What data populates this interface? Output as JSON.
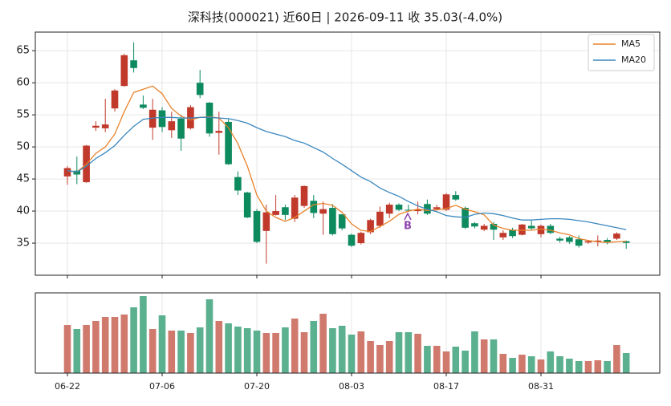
{
  "chart_data": {
    "type": "candlestick",
    "title": "深科技(000021) 近60日  |  2026-09-11 收 35.03(-4.0%)",
    "categories": [
      "06-22",
      null,
      null,
      null,
      null,
      null,
      null,
      null,
      null,
      null,
      "07-06",
      null,
      null,
      null,
      null,
      null,
      null,
      null,
      null,
      null,
      "07-20",
      null,
      null,
      null,
      null,
      null,
      null,
      null,
      null,
      null,
      "08-03",
      null,
      null,
      null,
      null,
      null,
      null,
      null,
      null,
      null,
      "08-17",
      null,
      null,
      null,
      null,
      null,
      null,
      null,
      null,
      null,
      "08-31",
      null,
      null,
      null,
      null,
      null,
      null,
      null,
      null,
      null
    ],
    "open": [
      45.4,
      46.3,
      44.5,
      53,
      52.9,
      56,
      59.5,
      63.5,
      56.6,
      53,
      55.7,
      52.6,
      54.4,
      52.9,
      60,
      56.9,
      52.2,
      53.9,
      45.3,
      42.9,
      40,
      36.9,
      39.4,
      40.6,
      38.8,
      40.8,
      41.6,
      39.6,
      40.5,
      39.5,
      36.3,
      35,
      36.7,
      37.7,
      39.6,
      41,
      40.2,
      40,
      41.1,
      40.3,
      40.2,
      42.5,
      40.5,
      38.1,
      37.1,
      38,
      35.9,
      37.1,
      36.3,
      37.7,
      36.4,
      37.7,
      35.7,
      35.9,
      35.6,
      35.1,
      35.2,
      35.5,
      35.7,
      35.3
    ],
    "high": [
      47,
      48.5,
      50.3,
      54,
      57.5,
      59,
      64.5,
      66.3,
      58,
      57.5,
      56.2,
      55.5,
      55,
      56.5,
      62,
      57,
      55.5,
      54.3,
      46.2,
      43,
      40.3,
      41,
      42.5,
      41,
      42.5,
      44,
      42.5,
      41.5,
      41.1,
      39.5,
      36.5,
      36.8,
      38.8,
      40.7,
      41.3,
      41.2,
      41,
      41.5,
      41.8,
      41,
      42.8,
      43.1,
      40.7,
      38.3,
      38,
      38.3,
      37,
      37.4,
      38,
      38.5,
      37.9,
      38,
      36,
      36.1,
      36.2,
      35.5,
      36.2,
      35.8,
      36.7,
      35.4
    ],
    "low": [
      44.1,
      44.2,
      44.4,
      52.5,
      52.3,
      55.5,
      59.4,
      61.6,
      55.9,
      51.1,
      52.3,
      51.4,
      49.4,
      52.7,
      57.6,
      51.6,
      48.8,
      47.2,
      42.5,
      38.9,
      35,
      31.8,
      39.3,
      38.6,
      38.3,
      40.5,
      38.9,
      36.3,
      36.2,
      37,
      34.4,
      34.8,
      36.4,
      37.4,
      38.9,
      40,
      39.9,
      39.5,
      39.4,
      40.1,
      40,
      41.6,
      37.2,
      37.3,
      36.9,
      35.5,
      35.5,
      35.8,
      36.2,
      37.1,
      35.9,
      36.4,
      35.1,
      34.9,
      34.3,
      34.9,
      34.5,
      34.8,
      35.5,
      34.1
    ],
    "close": [
      46.7,
      45.7,
      50.2,
      53.3,
      53.5,
      58.8,
      64.3,
      62.3,
      56.1,
      55.8,
      53.1,
      54,
      51.3,
      56.2,
      58.1,
      52.1,
      52.5,
      47.3,
      43.2,
      39,
      35.2,
      39.8,
      40,
      39.4,
      42.1,
      43.9,
      39.7,
      40.3,
      36.4,
      37.3,
      34.6,
      36.6,
      38.6,
      39.9,
      41,
      40.2,
      40.1,
      40.2,
      39.6,
      40.6,
      42.6,
      41.8,
      37.4,
      37.6,
      37.7,
      37.1,
      36.6,
      36.1,
      37.9,
      37.3,
      37.7,
      36.6,
      35.4,
      35.2,
      34.6,
      35.3,
      35.4,
      35.2,
      36.49,
      35.03
    ],
    "up_color": "#c0392b",
    "down_color": "#0e8a5f",
    "up_volume_color": "#d07a6e",
    "down_volume_color": "#5bb08f",
    "series": [
      {
        "name": "MA5",
        "color": "#e8822a",
        "values": [
          46.3,
          46.1,
          47.3,
          49,
          50,
          52,
          55.5,
          58.5,
          59,
          59.5,
          58.3,
          56,
          54.8,
          54.2,
          54.6,
          54.7,
          54.5,
          53,
          50.5,
          47,
          42.5,
          40,
          39,
          38.4,
          39,
          40,
          41,
          41.2,
          40.9,
          39.8,
          38,
          37,
          36.8,
          37.6,
          38.4,
          39.5,
          40,
          40.3,
          40.1,
          40.2,
          40.4,
          40.9,
          40.3,
          39.9,
          39.4,
          37.8,
          37.3,
          37,
          37,
          37,
          37.2,
          37,
          36.6,
          36.3,
          35.7,
          35.4,
          35.2,
          35.1,
          35.2,
          35.3
        ]
      },
      {
        "name": "MA20",
        "color": "#3a87be",
        "values": [
          46.3,
          46.1,
          47,
          48.2,
          49.1,
          50.2,
          51.8,
          53.2,
          54.3,
          54.5,
          54.6,
          54.6,
          54.5,
          54.5,
          54.6,
          54.6,
          54.5,
          54.4,
          54.1,
          53.7,
          53,
          52.4,
          52,
          51.6,
          51,
          50.6,
          49.9,
          49.2,
          48.2,
          47.3,
          46.3,
          45.3,
          44.6,
          43.6,
          42.9,
          42.3,
          41.5,
          40.8,
          40.3,
          39.9,
          39.3,
          39.1,
          39,
          39.5,
          39.7,
          39.6,
          39.3,
          38.9,
          38.6,
          38.6,
          38.7,
          38.8,
          38.8,
          38.7,
          38.5,
          38.3,
          38,
          37.7,
          37.4,
          37.1
        ]
      }
    ],
    "volume": [
      60,
      55,
      60,
      65,
      70,
      70,
      73,
      82,
      96,
      55,
      72,
      53,
      53,
      50,
      57,
      92,
      65,
      62,
      58,
      56,
      53,
      50,
      50,
      57,
      68,
      51,
      65,
      74,
      56,
      59,
      48,
      52,
      40,
      35,
      40,
      51,
      51,
      49,
      34,
      34,
      27,
      33,
      28,
      52,
      42,
      42,
      24,
      19,
      23,
      21,
      17,
      27,
      21,
      18,
      15,
      15,
      16,
      15,
      35,
      25
    ],
    "volume_ylim": [
      0,
      100
    ],
    "ylim": [
      30,
      67.9
    ],
    "yticks": [
      35,
      40,
      45,
      50,
      55,
      60,
      65
    ],
    "grid": true,
    "legend": "upper right",
    "annotations": [
      "B"
    ]
  }
}
